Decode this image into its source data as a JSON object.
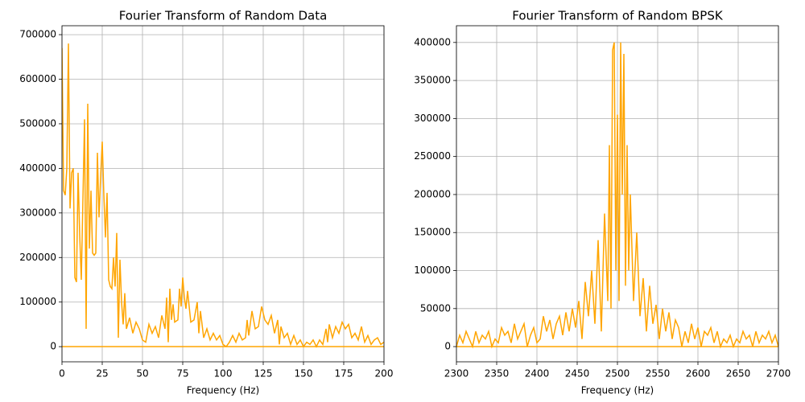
{
  "chart_data": [
    {
      "type": "line",
      "title": "Fourier Transform of Random Data",
      "xlabel": "Frequency (Hz)",
      "grid": true,
      "xlim": [
        0,
        200
      ],
      "xticks": [
        0,
        25,
        50,
        75,
        100,
        125,
        150,
        175,
        200
      ],
      "ylim": [
        -34000,
        720000
      ],
      "yticks": [
        0,
        100000,
        200000,
        300000,
        400000,
        500000,
        600000,
        700000
      ],
      "series": [
        {
          "color": "#ffa500",
          "x": [
            0,
            1,
            2,
            3,
            4,
            5,
            6,
            7,
            8,
            9,
            10,
            11,
            12,
            13,
            14,
            15,
            16,
            17,
            18,
            19,
            20,
            21,
            22,
            23,
            24,
            25,
            26,
            27,
            28,
            29,
            30,
            31,
            32,
            33,
            34,
            35,
            36,
            37,
            38,
            39,
            40,
            42,
            44,
            46,
            48,
            50,
            52,
            54,
            56,
            58,
            60,
            62,
            64,
            65,
            66,
            67,
            68,
            69,
            70,
            72,
            73,
            74,
            75,
            76,
            77,
            78,
            80,
            82,
            84,
            85,
            86,
            88,
            90,
            92,
            94,
            96,
            98,
            100,
            102,
            104,
            106,
            108,
            110,
            112,
            114,
            115,
            116,
            118,
            120,
            122,
            124,
            126,
            128,
            130,
            132,
            134,
            135,
            136,
            138,
            140,
            142,
            144,
            146,
            148,
            150,
            152,
            154,
            156,
            158,
            160,
            162,
            164,
            165,
            166,
            168,
            170,
            172,
            174,
            176,
            178,
            180,
            182,
            184,
            186,
            188,
            190,
            192,
            194,
            196,
            198,
            200
          ],
          "values": [
            670000,
            350000,
            340000,
            400000,
            680000,
            310000,
            390000,
            400000,
            155000,
            145000,
            390000,
            250000,
            150000,
            330000,
            510000,
            40000,
            545000,
            220000,
            350000,
            210000,
            205000,
            210000,
            435000,
            290000,
            380000,
            460000,
            340000,
            245000,
            345000,
            150000,
            135000,
            130000,
            200000,
            135000,
            255000,
            20000,
            195000,
            100000,
            50000,
            120000,
            40000,
            65000,
            30000,
            55000,
            40000,
            15000,
            10000,
            50000,
            30000,
            45000,
            20000,
            70000,
            40000,
            110000,
            10000,
            130000,
            60000,
            95000,
            55000,
            60000,
            130000,
            90000,
            155000,
            110000,
            85000,
            125000,
            55000,
            60000,
            100000,
            30000,
            80000,
            20000,
            40000,
            15000,
            30000,
            15000,
            25000,
            5000,
            0,
            10000,
            25000,
            10000,
            30000,
            15000,
            20000,
            60000,
            25000,
            80000,
            40000,
            45000,
            90000,
            60000,
            50000,
            70000,
            30000,
            60000,
            5000,
            45000,
            20000,
            30000,
            5000,
            25000,
            5000,
            15000,
            0,
            10000,
            5000,
            15000,
            0,
            15000,
            5000,
            40000,
            10000,
            50000,
            20000,
            45000,
            30000,
            55000,
            40000,
            50000,
            20000,
            30000,
            15000,
            45000,
            10000,
            25000,
            5000,
            15000,
            20000,
            5000,
            10000
          ]
        },
        {
          "color": "#ffa500",
          "x": [
            0,
            200
          ],
          "values": [
            0,
            0
          ]
        }
      ]
    },
    {
      "type": "line",
      "title": "Fourier Transform of Random BPSK",
      "xlabel": "Frequency (Hz)",
      "grid": true,
      "xlim": [
        2300,
        2700
      ],
      "xticks": [
        2300,
        2350,
        2400,
        2450,
        2500,
        2550,
        2600,
        2650,
        2700
      ],
      "ylim": [
        -20000,
        422000
      ],
      "yticks": [
        0,
        50000,
        100000,
        150000,
        200000,
        250000,
        300000,
        350000,
        400000
      ],
      "series": [
        {
          "color": "#ffa500",
          "x": [
            2300,
            2304,
            2308,
            2312,
            2316,
            2320,
            2324,
            2328,
            2332,
            2336,
            2340,
            2344,
            2348,
            2352,
            2356,
            2360,
            2364,
            2368,
            2372,
            2376,
            2380,
            2384,
            2388,
            2392,
            2396,
            2400,
            2404,
            2408,
            2412,
            2416,
            2420,
            2424,
            2428,
            2432,
            2436,
            2440,
            2444,
            2448,
            2452,
            2456,
            2460,
            2464,
            2468,
            2472,
            2476,
            2480,
            2484,
            2488,
            2490,
            2492,
            2494,
            2496,
            2498,
            2500,
            2502,
            2504,
            2506,
            2508,
            2510,
            2512,
            2514,
            2516,
            2520,
            2524,
            2528,
            2532,
            2536,
            2540,
            2544,
            2548,
            2552,
            2556,
            2560,
            2564,
            2568,
            2572,
            2576,
            2580,
            2584,
            2588,
            2592,
            2596,
            2600,
            2604,
            2608,
            2612,
            2616,
            2620,
            2624,
            2628,
            2632,
            2636,
            2640,
            2644,
            2648,
            2652,
            2656,
            2660,
            2664,
            2668,
            2672,
            2676,
            2680,
            2684,
            2688,
            2692,
            2696,
            2700
          ],
          "values": [
            0,
            15000,
            5000,
            20000,
            10000,
            0,
            20000,
            5000,
            15000,
            10000,
            20000,
            0,
            10000,
            5000,
            25000,
            15000,
            20000,
            5000,
            30000,
            10000,
            20000,
            30000,
            0,
            15000,
            25000,
            5000,
            10000,
            40000,
            20000,
            35000,
            10000,
            30000,
            40000,
            15000,
            45000,
            20000,
            50000,
            25000,
            60000,
            10000,
            85000,
            40000,
            100000,
            30000,
            140000,
            20000,
            175000,
            60000,
            265000,
            50000,
            390000,
            400000,
            100000,
            305000,
            60000,
            400000,
            200000,
            385000,
            80000,
            265000,
            100000,
            200000,
            60000,
            150000,
            40000,
            90000,
            20000,
            80000,
            30000,
            55000,
            10000,
            50000,
            20000,
            45000,
            10000,
            35000,
            25000,
            0,
            20000,
            5000,
            30000,
            10000,
            25000,
            0,
            20000,
            15000,
            25000,
            5000,
            20000,
            0,
            10000,
            5000,
            15000,
            0,
            10000,
            5000,
            20000,
            10000,
            15000,
            0,
            20000,
            5000,
            15000,
            10000,
            20000,
            5000,
            15000,
            0
          ]
        },
        {
          "color": "#ffa500",
          "x": [
            2300,
            2700
          ],
          "values": [
            0,
            0
          ]
        }
      ]
    }
  ]
}
